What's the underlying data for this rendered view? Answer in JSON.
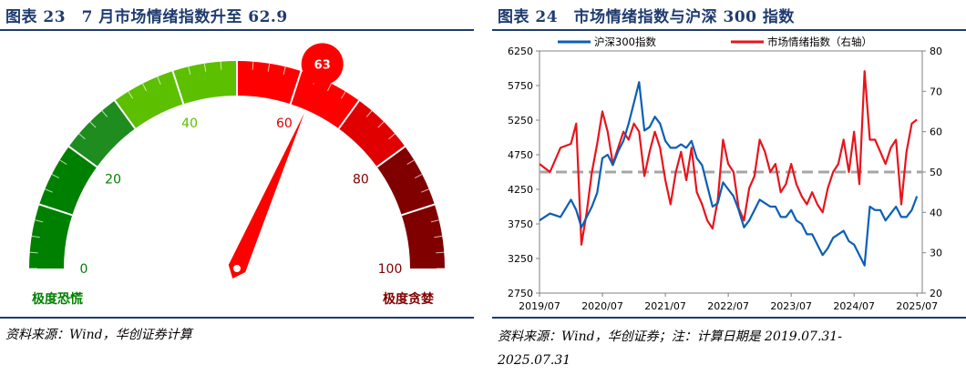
{
  "left": {
    "title": "图表 23　7 月市场情绪指数升至 62.9",
    "source": "资料来源：Wind，华创证券计算"
  },
  "right": {
    "title": "图表 24　市场情绪指数与沪深 300 指数",
    "source_line1": "资料来源：Wind，华创证券；注：计算日期是 2019.07.31-",
    "source_line2": "2025.07.31"
  },
  "chart_data": [
    {
      "type": "gauge",
      "value": 63,
      "value_label": "63",
      "min": 0,
      "max": 100,
      "tick_labels": [
        "0",
        "20",
        "40",
        "60",
        "80",
        "100"
      ],
      "tick_values": [
        0,
        20,
        40,
        60,
        80,
        100
      ],
      "bands": [
        {
          "from": 0,
          "to": 20,
          "color": "#008000"
        },
        {
          "from": 20,
          "to": 30,
          "color": "#1e8c1e"
        },
        {
          "from": 30,
          "to": 50,
          "color": "#5cbf00"
        },
        {
          "from": 50,
          "to": 70,
          "color": "#ff0000"
        },
        {
          "from": 70,
          "to": 80,
          "color": "#e00000"
        },
        {
          "from": 80,
          "to": 100,
          "color": "#800000"
        }
      ],
      "left_label": "极度恐慌",
      "right_label": "极度贪婪",
      "colors": {
        "fear": "#008000",
        "greed": "#800000",
        "needle": "#ff0000"
      }
    },
    {
      "type": "line",
      "title": "",
      "x_tick_labels": [
        "2019/07",
        "2020/07",
        "2021/07",
        "2022/07",
        "2023/07",
        "2024/07",
        "2025/07"
      ],
      "x_range": [
        "2019/07",
        "2025/07"
      ],
      "y_left": {
        "ticks": [
          2750,
          3250,
          3750,
          4250,
          4750,
          5250,
          5750,
          6250
        ],
        "range": [
          2750,
          6250
        ]
      },
      "y_right": {
        "ticks": [
          20,
          30,
          40,
          50,
          60,
          70,
          80
        ],
        "range": [
          20,
          80
        ]
      },
      "reference_line": {
        "axis": "right",
        "value": 50,
        "color": "#a6a6a6",
        "style": "dashed"
      },
      "legend_position": "top",
      "series": [
        {
          "name": "沪深300指数",
          "axis": "left",
          "color": "#0b5fb5",
          "x": [
            "2019/07",
            "2019/09",
            "2019/11",
            "2020/01",
            "2020/02",
            "2020/03",
            "2020/04",
            "2020/05",
            "2020/06",
            "2020/07",
            "2020/08",
            "2020/09",
            "2020/10",
            "2020/11",
            "2020/12",
            "2021/01",
            "2021/02",
            "2021/03",
            "2021/04",
            "2021/05",
            "2021/06",
            "2021/07",
            "2021/08",
            "2021/09",
            "2021/10",
            "2021/11",
            "2021/12",
            "2022/01",
            "2022/02",
            "2022/03",
            "2022/04",
            "2022/05",
            "2022/06",
            "2022/07",
            "2022/08",
            "2022/09",
            "2022/10",
            "2022/11",
            "2022/12",
            "2023/01",
            "2023/02",
            "2023/03",
            "2023/04",
            "2023/05",
            "2023/06",
            "2023/07",
            "2023/08",
            "2023/09",
            "2023/10",
            "2023/11",
            "2023/12",
            "2024/01",
            "2024/02",
            "2024/03",
            "2024/04",
            "2024/05",
            "2024/06",
            "2024/07",
            "2024/08",
            "2024/09",
            "2024/10",
            "2024/11",
            "2024/12",
            "2025/01",
            "2025/02",
            "2025/03",
            "2025/04",
            "2025/05",
            "2025/06",
            "2025/07"
          ],
          "values": [
            3800,
            3900,
            3850,
            4100,
            3950,
            3700,
            3850,
            4000,
            4200,
            4700,
            4750,
            4600,
            4800,
            4950,
            5200,
            5500,
            5800,
            5100,
            5150,
            5300,
            5200,
            4950,
            4850,
            4850,
            4900,
            4850,
            4950,
            4700,
            4600,
            4300,
            4000,
            4050,
            4350,
            4250,
            4150,
            3950,
            3700,
            3800,
            3950,
            4100,
            4050,
            4000,
            4000,
            3850,
            3850,
            3950,
            3800,
            3750,
            3600,
            3600,
            3450,
            3300,
            3400,
            3550,
            3600,
            3650,
            3500,
            3450,
            3300,
            3150,
            4000,
            3950,
            3950,
            3800,
            3900,
            4000,
            3850,
            3850,
            3950,
            4150
          ]
        },
        {
          "name": "市场情绪指数（右轴）",
          "axis": "right",
          "color": "#e8141c",
          "x": [
            "2019/07",
            "2019/09",
            "2019/11",
            "2020/01",
            "2020/02",
            "2020/03",
            "2020/04",
            "2020/05",
            "2020/06",
            "2020/07",
            "2020/08",
            "2020/09",
            "2020/10",
            "2020/11",
            "2020/12",
            "2021/01",
            "2021/02",
            "2021/03",
            "2021/04",
            "2021/05",
            "2021/06",
            "2021/07",
            "2021/08",
            "2021/09",
            "2021/10",
            "2021/11",
            "2021/12",
            "2022/01",
            "2022/02",
            "2022/03",
            "2022/04",
            "2022/05",
            "2022/06",
            "2022/07",
            "2022/08",
            "2022/09",
            "2022/10",
            "2022/11",
            "2022/12",
            "2023/01",
            "2023/02",
            "2023/03",
            "2023/04",
            "2023/05",
            "2023/06",
            "2023/07",
            "2023/08",
            "2023/09",
            "2023/10",
            "2023/11",
            "2023/12",
            "2024/01",
            "2024/02",
            "2024/03",
            "2024/04",
            "2024/05",
            "2024/06",
            "2024/07",
            "2024/08",
            "2024/09",
            "2024/10",
            "2024/11",
            "2024/12",
            "2025/01",
            "2025/02",
            "2025/03",
            "2025/04",
            "2025/05",
            "2025/06",
            "2025/07"
          ],
          "values": [
            52,
            50,
            56,
            57,
            62,
            32,
            40,
            50,
            57,
            65,
            60,
            52,
            56,
            60,
            58,
            62,
            60,
            49,
            55,
            60,
            56,
            48,
            42,
            50,
            55,
            48,
            56,
            45,
            42,
            38,
            36,
            43,
            58,
            52,
            50,
            41,
            38,
            46,
            49,
            58,
            55,
            50,
            52,
            45,
            47,
            52,
            47,
            44,
            42,
            45,
            42,
            40,
            46,
            50,
            52,
            58,
            50,
            60,
            47,
            75,
            58,
            58,
            55,
            52,
            56,
            58,
            42,
            55,
            62,
            63
          ]
        }
      ]
    }
  ]
}
